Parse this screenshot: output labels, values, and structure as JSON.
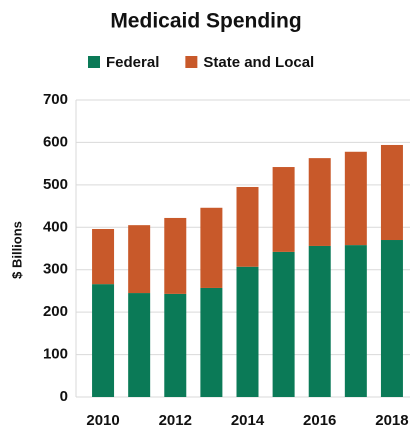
{
  "chart_data": {
    "type": "stacked_bar",
    "title": "Medicaid Spending",
    "y_label": "$ Billions",
    "categories": [
      "2010",
      null,
      "2012",
      null,
      "2014",
      null,
      "2016",
      null,
      "2018"
    ],
    "series": [
      {
        "name": "Federal",
        "color": "#0b7a57",
        "values": [
          266,
          245,
          243,
          257,
          307,
          342,
          356,
          358,
          370
        ]
      },
      {
        "name": "State and Local",
        "color": "#c8592a",
        "values": [
          130,
          160,
          179,
          189,
          188,
          200,
          207,
          220,
          224
        ]
      }
    ],
    "ylim": [
      0,
      700
    ],
    "yticks": [
      0,
      100,
      200,
      300,
      400,
      500,
      600,
      700
    ],
    "grid": true,
    "legend": "top"
  }
}
